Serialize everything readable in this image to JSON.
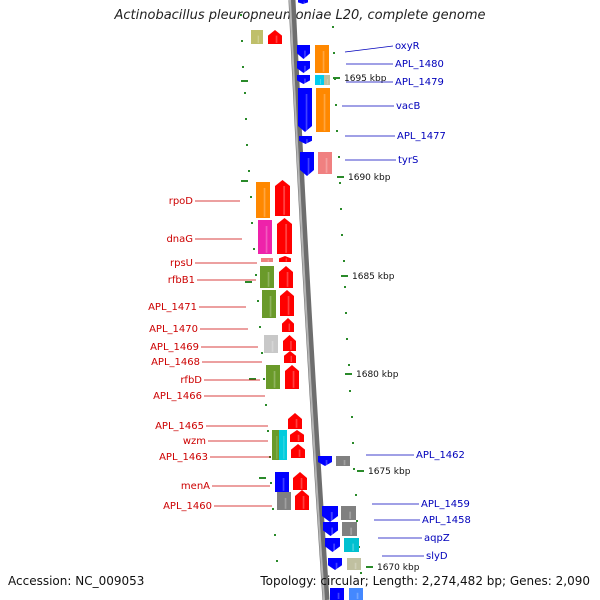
{
  "title": "Actinobacillus pleuropneumoniae L20, complete genome",
  "accession": "Accession: NC_009053",
  "topology": "Topology: circular; Length: 2,274,482 bp; Genes: 2,090",
  "colors": {
    "backbone": "#8a8a8a",
    "label_left": "#cc0000",
    "label_right": "#0000bb",
    "tick": "#2a8a2a",
    "forward_strand": "#ff0000",
    "reverse_strand": "#0000ff"
  },
  "ticks": [
    {
      "label": "1695 kbp"
    },
    {
      "label": "1690 kbp"
    },
    {
      "label": "1685 kbp"
    },
    {
      "label": "1680 kbp"
    },
    {
      "label": "1675 kbp"
    },
    {
      "label": "1670 kbp"
    }
  ],
  "left_labels": [
    {
      "name": "rpoD"
    },
    {
      "name": "dnaG"
    },
    {
      "name": "rpsU"
    },
    {
      "name": "rfbB1"
    },
    {
      "name": "APL_1471"
    },
    {
      "name": "APL_1470"
    },
    {
      "name": "APL_1469"
    },
    {
      "name": "APL_1468"
    },
    {
      "name": "rfbD"
    },
    {
      "name": "APL_1466"
    },
    {
      "name": "APL_1465"
    },
    {
      "name": "wzm"
    },
    {
      "name": "APL_1463"
    },
    {
      "name": "menA"
    },
    {
      "name": "APL_1460"
    }
  ],
  "right_labels": [
    {
      "name": "oxyR"
    },
    {
      "name": "APL_1480"
    },
    {
      "name": "APL_1479"
    },
    {
      "name": "vacB"
    },
    {
      "name": "APL_1477"
    },
    {
      "name": "tyrS"
    },
    {
      "name": "APL_1462"
    },
    {
      "name": "APL_1459"
    },
    {
      "name": "APL_1458"
    },
    {
      "name": "aqpZ"
    },
    {
      "name": "slyD"
    }
  ]
}
